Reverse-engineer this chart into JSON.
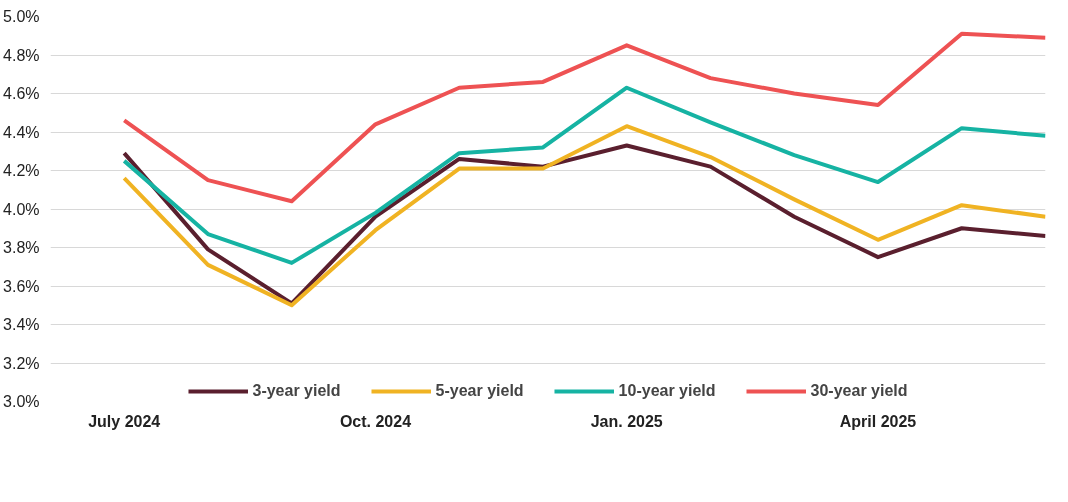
{
  "chart_data": {
    "type": "line",
    "categories": [
      "July 2024",
      null,
      null,
      "Oct. 2024",
      null,
      null,
      "Jan. 2025",
      null,
      null,
      "April 2025",
      null,
      null
    ],
    "series": [
      {
        "name": "3-year yield",
        "color": "#5a1f2e",
        "values": [
          4.29,
          3.79,
          3.51,
          3.96,
          4.26,
          4.22,
          4.33,
          4.22,
          3.96,
          3.75,
          3.9,
          3.86
        ]
      },
      {
        "name": "5-year yield",
        "color": "#f0b323",
        "values": [
          4.16,
          3.71,
          3.5,
          3.89,
          4.21,
          4.21,
          4.43,
          4.27,
          4.05,
          3.84,
          4.02,
          3.96
        ]
      },
      {
        "name": "10-year yield",
        "color": "#16b3a3",
        "values": [
          4.25,
          3.87,
          3.72,
          3.98,
          4.29,
          4.32,
          4.63,
          4.45,
          4.28,
          4.14,
          4.42,
          4.38
        ]
      },
      {
        "name": "30-year yield",
        "color": "#ee5253",
        "values": [
          4.46,
          4.15,
          4.04,
          4.44,
          4.63,
          4.66,
          4.85,
          4.68,
          4.6,
          4.54,
          4.91,
          4.89
        ]
      }
    ],
    "ylim": [
      3.0,
      5.0
    ],
    "yticks": [
      {
        "value": 3.0,
        "label": "3.0%"
      },
      {
        "value": 3.2,
        "label": "3.2%"
      },
      {
        "value": 3.4,
        "label": "3.4%"
      },
      {
        "value": 3.6,
        "label": "3.6%"
      },
      {
        "value": 3.8,
        "label": "3.8%"
      },
      {
        "value": 4.0,
        "label": "4.0%"
      },
      {
        "value": 4.2,
        "label": "4.2%"
      },
      {
        "value": 4.4,
        "label": "4.4%"
      },
      {
        "value": 4.6,
        "label": "4.6%"
      },
      {
        "value": 4.8,
        "label": "4.8%"
      },
      {
        "value": 5.0,
        "label": "5.0%"
      }
    ],
    "grid": "y",
    "legend": "bottom",
    "marker": "none",
    "line_style": "solid"
  }
}
